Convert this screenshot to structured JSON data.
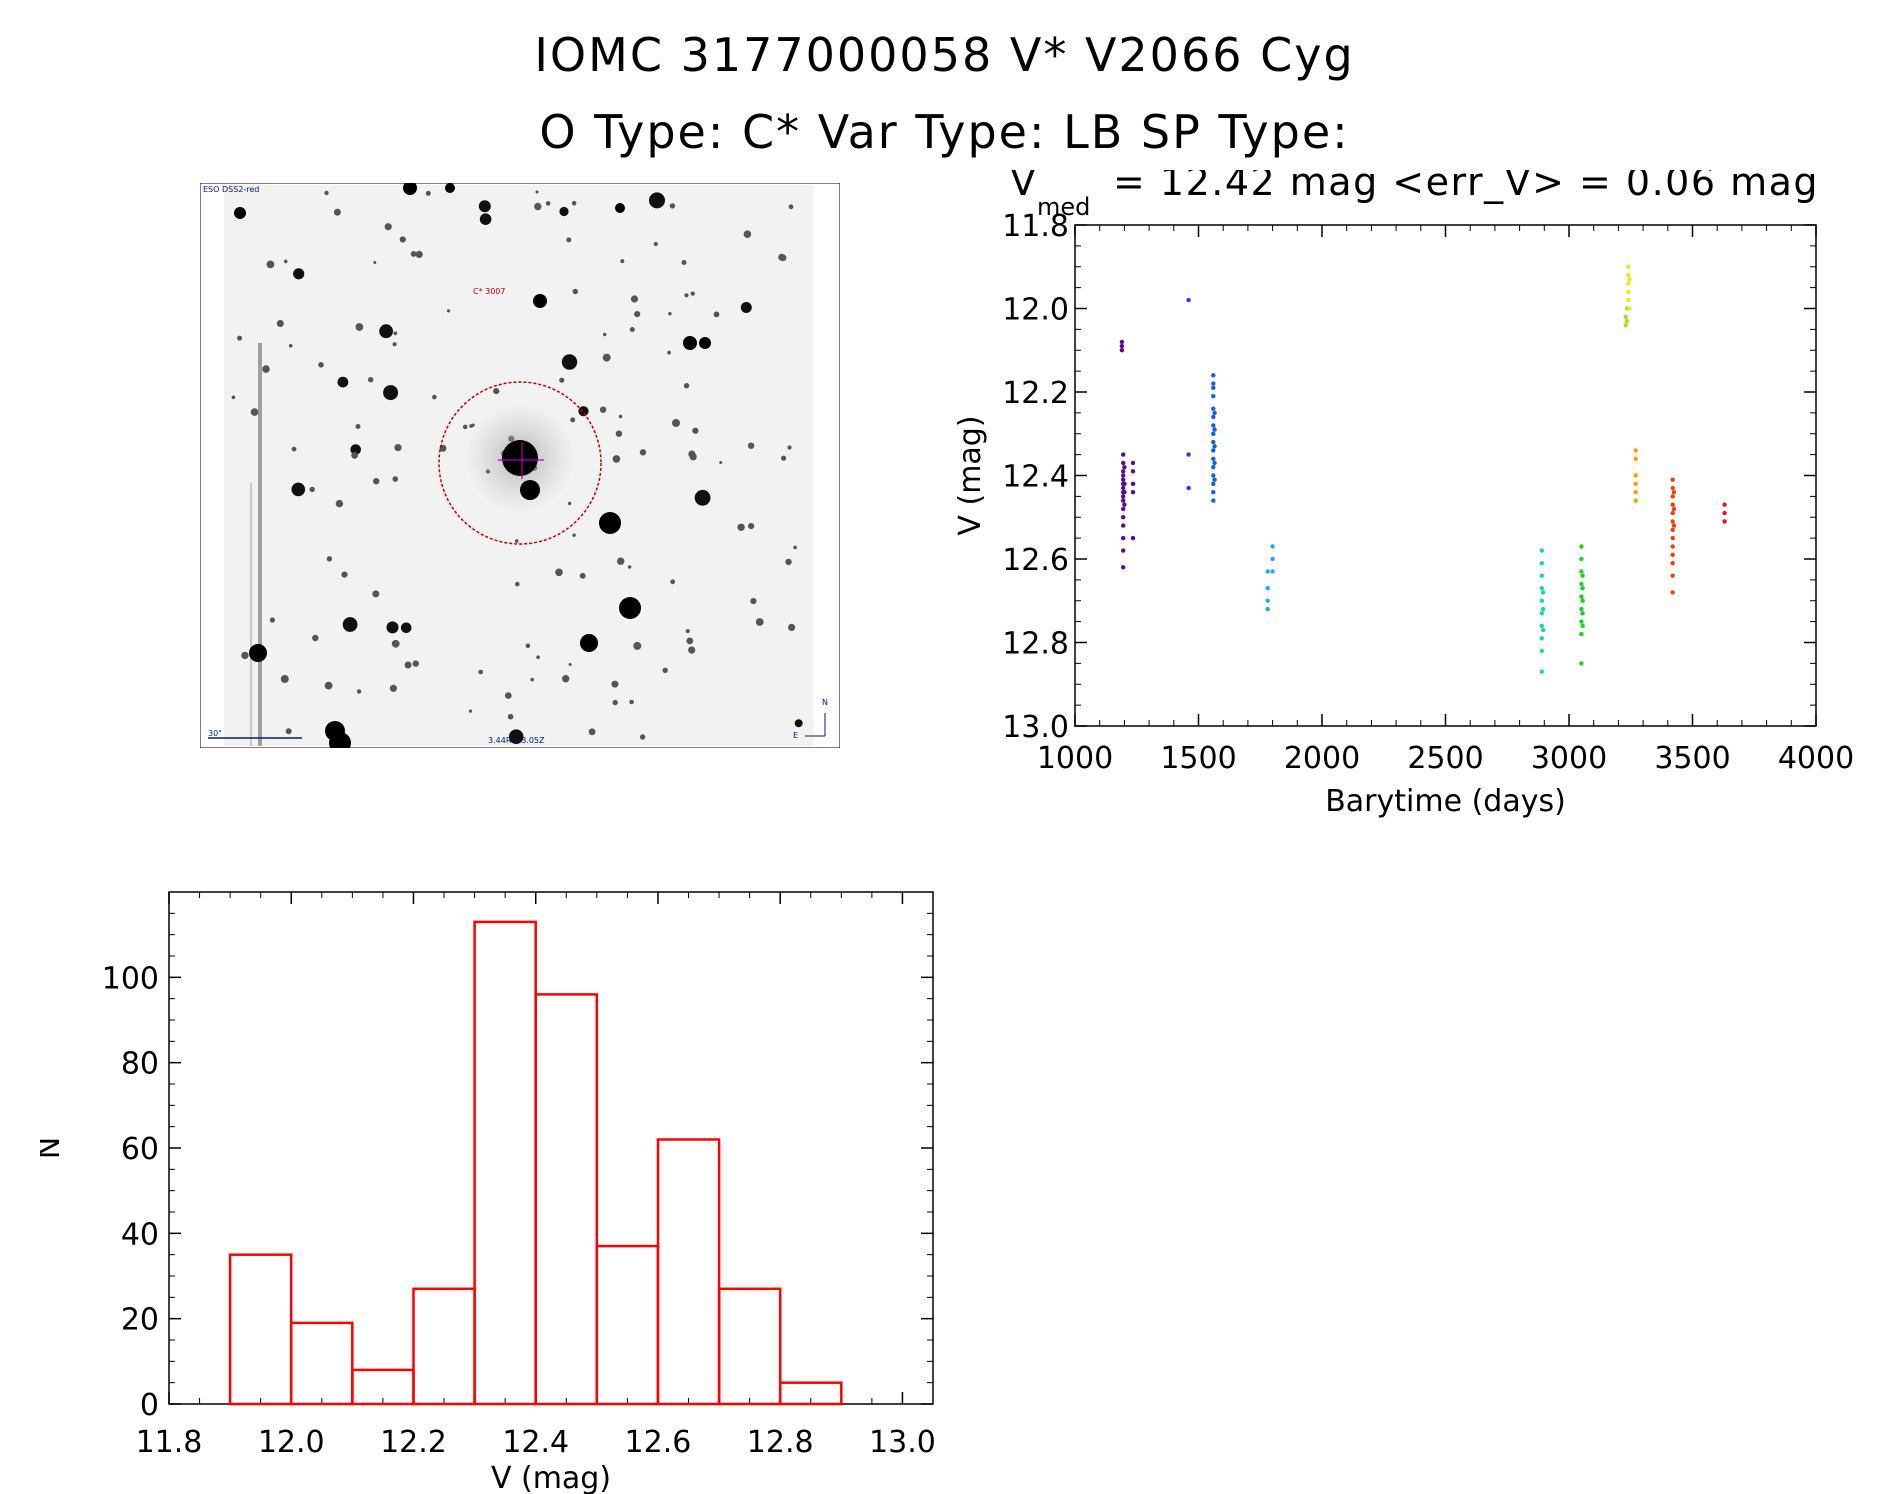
{
  "header": {
    "title": "IOMC 3177000058   V* V2066 Cyg",
    "subtitle": "O Type: C*  Var Type: LB  SP Type:"
  },
  "finder": {
    "survey_label": "ESO DSS2-red",
    "object_label": "C* 3007",
    "scale_label": "30\"",
    "size_label": "3.44R x 3.05Z",
    "north_label": "N",
    "east_label": "E"
  },
  "lightcurve": {
    "vmed_prefix": "V",
    "vmed_subscript": "med",
    "vmed_text": "= 12.42 mag <err_V> = 0.06 mag"
  },
  "chart_data": [
    {
      "type": "scatter",
      "xlabel": "Barytime (days)",
      "ylabel": "V (mag)",
      "xlim": [
        1000,
        4000
      ],
      "ylim": [
        13.0,
        11.8
      ],
      "y_inverted": true,
      "xticks": [
        "1000",
        "1500",
        "2000",
        "2500",
        "3000",
        "3500",
        "4000"
      ],
      "yticks": [
        "11.8",
        "12.0",
        "12.2",
        "12.4",
        "12.6",
        "12.8",
        "13.0"
      ],
      "series": [
        {
          "color": "#5a0a8a",
          "points": [
            [
              1190,
              12.08
            ],
            [
              1190,
              12.09
            ],
            [
              1190,
              12.1
            ],
            [
              1195,
              12.35
            ],
            [
              1195,
              12.37
            ],
            [
              1195,
              12.39
            ],
            [
              1195,
              12.4
            ],
            [
              1195,
              12.41
            ],
            [
              1195,
              12.42
            ],
            [
              1195,
              12.43
            ],
            [
              1195,
              12.44
            ],
            [
              1195,
              12.45
            ],
            [
              1195,
              12.46
            ],
            [
              1195,
              12.48
            ],
            [
              1195,
              12.5
            ],
            [
              1195,
              12.52
            ],
            [
              1195,
              12.55
            ],
            [
              1195,
              12.58
            ],
            [
              1195,
              12.62
            ],
            [
              1200,
              12.38
            ],
            [
              1200,
              12.42
            ],
            [
              1200,
              12.44
            ],
            [
              1200,
              12.47
            ],
            [
              1235,
              12.37
            ],
            [
              1235,
              12.39
            ],
            [
              1235,
              12.42
            ],
            [
              1235,
              12.44
            ],
            [
              1235,
              12.55
            ]
          ]
        },
        {
          "color": "#2040d8",
          "points": [
            [
              1460,
              11.98
            ],
            [
              1460,
              12.35
            ],
            [
              1460,
              12.43
            ]
          ]
        },
        {
          "color": "#1060e0",
          "points": [
            [
              1560,
              12.16
            ],
            [
              1560,
              12.18
            ],
            [
              1560,
              12.19
            ],
            [
              1560,
              12.21
            ],
            [
              1560,
              12.24
            ],
            [
              1560,
              12.26
            ],
            [
              1560,
              12.28
            ],
            [
              1560,
              12.3
            ],
            [
              1560,
              12.32
            ],
            [
              1560,
              12.34
            ],
            [
              1560,
              12.36
            ],
            [
              1560,
              12.38
            ],
            [
              1560,
              12.4
            ],
            [
              1560,
              12.42
            ],
            [
              1560,
              12.44
            ],
            [
              1560,
              12.46
            ],
            [
              1565,
              12.25
            ],
            [
              1565,
              12.29
            ],
            [
              1565,
              12.33
            ],
            [
              1565,
              12.37
            ],
            [
              1565,
              12.41
            ]
          ]
        },
        {
          "color": "#28a8e8",
          "points": [
            [
              1780,
              12.63
            ],
            [
              1780,
              12.67
            ],
            [
              1780,
              12.7
            ],
            [
              1780,
              12.72
            ],
            [
              1800,
              12.57
            ],
            [
              1800,
              12.6
            ],
            [
              1800,
              12.63
            ]
          ]
        },
        {
          "color": "#20d0b0",
          "points": [
            [
              2890,
              12.58
            ],
            [
              2890,
              12.61
            ],
            [
              2890,
              12.64
            ],
            [
              2890,
              12.67
            ],
            [
              2890,
              12.7
            ],
            [
              2890,
              12.73
            ],
            [
              2890,
              12.76
            ],
            [
              2890,
              12.79
            ],
            [
              2890,
              12.82
            ],
            [
              2890,
              12.87
            ],
            [
              2895,
              12.68
            ],
            [
              2895,
              12.72
            ],
            [
              2895,
              12.77
            ]
          ]
        },
        {
          "color": "#20d020",
          "points": [
            [
              3050,
              12.57
            ],
            [
              3050,
              12.6
            ],
            [
              3050,
              12.63
            ],
            [
              3050,
              12.66
            ],
            [
              3050,
              12.69
            ],
            [
              3050,
              12.72
            ],
            [
              3050,
              12.75
            ],
            [
              3050,
              12.78
            ],
            [
              3050,
              12.85
            ],
            [
              3055,
              12.64
            ],
            [
              3055,
              12.67
            ],
            [
              3055,
              12.7
            ],
            [
              3055,
              12.73
            ],
            [
              3055,
              12.76
            ]
          ]
        },
        {
          "color": "#a0e020",
          "points": [
            [
              3230,
              12.02
            ],
            [
              3230,
              12.04
            ],
            [
              3235,
              12.0
            ],
            [
              3235,
              12.03
            ]
          ]
        },
        {
          "color": "#e8e820",
          "points": [
            [
              3240,
              11.9
            ],
            [
              3240,
              11.92
            ],
            [
              3240,
              11.94
            ],
            [
              3240,
              11.96
            ],
            [
              3240,
              11.98
            ],
            [
              3245,
              12.0
            ],
            [
              3245,
              11.93
            ]
          ]
        },
        {
          "color": "#f0a000",
          "points": [
            [
              3270,
              12.34
            ],
            [
              3270,
              12.36
            ],
            [
              3270,
              12.4
            ],
            [
              3270,
              12.42
            ],
            [
              3270,
              12.44
            ],
            [
              3270,
              12.46
            ]
          ]
        },
        {
          "color": "#f04010",
          "points": [
            [
              3420,
              12.41
            ],
            [
              3420,
              12.43
            ],
            [
              3420,
              12.45
            ],
            [
              3420,
              12.47
            ],
            [
              3420,
              12.49
            ],
            [
              3420,
              12.51
            ],
            [
              3420,
              12.53
            ],
            [
              3420,
              12.55
            ],
            [
              3420,
              12.57
            ],
            [
              3420,
              12.59
            ],
            [
              3420,
              12.61
            ],
            [
              3420,
              12.64
            ],
            [
              3420,
              12.68
            ],
            [
              3425,
              12.44
            ],
            [
              3425,
              12.48
            ],
            [
              3425,
              12.52
            ]
          ]
        },
        {
          "color": "#e01818",
          "points": [
            [
              3630,
              12.47
            ],
            [
              3630,
              12.49
            ],
            [
              3630,
              12.51
            ]
          ]
        }
      ]
    },
    {
      "type": "bar",
      "subtype": "histogram",
      "xlabel": "V (mag)",
      "ylabel": "N",
      "xlim": [
        11.8,
        13.05
      ],
      "ylim": [
        0,
        120
      ],
      "xticks": [
        "11.8",
        "12.0",
        "12.2",
        "12.4",
        "12.6",
        "12.8",
        "13.0"
      ],
      "yticks": [
        "0",
        "20",
        "40",
        "60",
        "80",
        "100"
      ],
      "color": "#ff0000",
      "bins": [
        {
          "x0": 11.9,
          "x1": 12.0,
          "count": 35
        },
        {
          "x0": 12.0,
          "x1": 12.1,
          "count": 19
        },
        {
          "x0": 12.1,
          "x1": 12.2,
          "count": 8
        },
        {
          "x0": 12.2,
          "x1": 12.3,
          "count": 27
        },
        {
          "x0": 12.3,
          "x1": 12.4,
          "count": 113
        },
        {
          "x0": 12.4,
          "x1": 12.5,
          "count": 96
        },
        {
          "x0": 12.5,
          "x1": 12.6,
          "count": 37
        },
        {
          "x0": 12.6,
          "x1": 12.7,
          "count": 62
        },
        {
          "x0": 12.7,
          "x1": 12.8,
          "count": 27
        },
        {
          "x0": 12.8,
          "x1": 12.9,
          "count": 5
        }
      ]
    }
  ]
}
